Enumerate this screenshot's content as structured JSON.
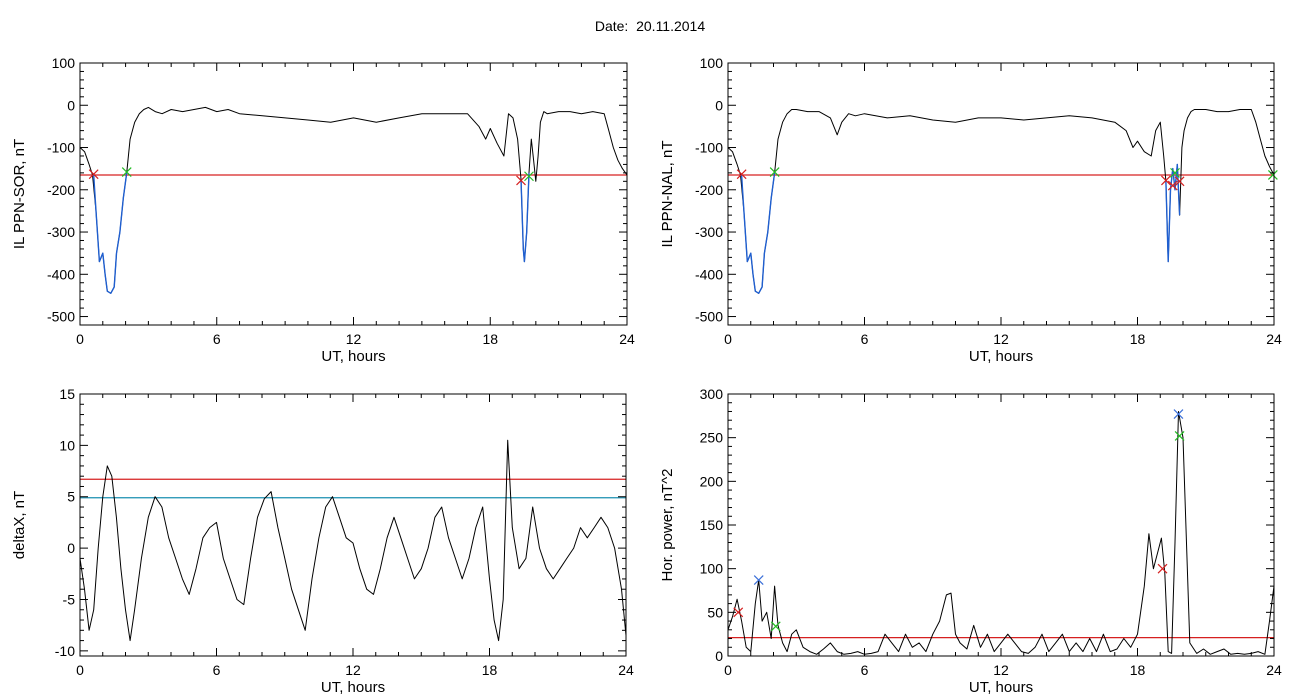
{
  "title": "Date:  20.11.2014",
  "colors": {
    "axis": "#000000",
    "signal": "#000000",
    "threshold_red": "#d62020",
    "threshold_teal": "#1a8fb0",
    "event_blue": "#1f5fd0",
    "marker_red": "#d62020",
    "marker_green": "#22bb22",
    "marker_blue": "#3a6fd8"
  },
  "chart_data": [
    {
      "id": "top-left",
      "type": "line",
      "xlabel": "UT, hours",
      "ylabel": "IL PPN-SOR, nT",
      "xlim": [
        0,
        24
      ],
      "ylim": [
        -520,
        100
      ],
      "xticks": [
        0,
        6,
        12,
        18,
        24
      ],
      "xtick_labels": [
        "0",
        "6",
        "12",
        "18",
        "24"
      ],
      "yticks": [
        100,
        0,
        -100,
        -200,
        -300,
        -400,
        -500
      ],
      "ytick_labels": [
        "100",
        "0",
        "-100",
        "-200",
        "-300",
        "-400",
        "-500"
      ],
      "hlines": [
        {
          "y": -165,
          "color": "threshold_red"
        }
      ],
      "series": [
        {
          "color": "signal",
          "x": [
            0,
            0.2,
            0.4,
            0.55,
            0.7,
            0.85,
            1.0,
            1.1,
            1.2,
            1.35,
            1.5,
            1.6,
            1.75,
            1.9,
            2.05,
            2.2,
            2.4,
            2.6,
            2.8,
            3.0,
            3.3,
            3.6,
            4.0,
            4.5,
            5.0,
            5.5,
            6.0,
            6.5,
            7.0,
            8.0,
            9.0,
            10.0,
            11.0,
            12.0,
            13.0,
            14.0,
            15.0,
            16.0,
            17.0,
            17.5,
            17.8,
            18.0,
            18.3,
            18.6,
            18.8,
            19.0,
            19.2,
            19.35,
            19.45,
            19.5,
            19.6,
            19.7,
            19.8,
            19.9,
            20.0,
            20.1,
            20.2,
            20.35,
            20.5,
            21.0,
            21.5,
            22.0,
            22.5,
            23.0,
            23.2,
            23.4,
            23.6,
            23.8,
            24.0
          ],
          "y": [
            -100,
            -110,
            -140,
            -165,
            -250,
            -370,
            -350,
            -400,
            -440,
            -445,
            -430,
            -350,
            -300,
            -220,
            -160,
            -80,
            -40,
            -20,
            -10,
            -5,
            -15,
            -20,
            -10,
            -15,
            -10,
            -5,
            -15,
            -10,
            -20,
            -25,
            -30,
            -35,
            -40,
            -30,
            -40,
            -30,
            -20,
            -20,
            -20,
            -50,
            -80,
            -55,
            -90,
            -120,
            -20,
            -30,
            -80,
            -175,
            -340,
            -370,
            -300,
            -160,
            -80,
            -130,
            -180,
            -120,
            -40,
            -15,
            -20,
            -15,
            -15,
            -20,
            -15,
            -20,
            -60,
            -100,
            -130,
            -150,
            -165
          ]
        },
        {
          "color": "event_blue",
          "x": [
            0.6,
            0.7,
            0.85,
            1.0,
            1.1,
            1.2,
            1.35,
            1.5,
            1.6,
            1.75,
            1.9,
            2.05
          ],
          "y": [
            -165,
            -250,
            -370,
            -350,
            -400,
            -440,
            -445,
            -430,
            -350,
            -300,
            -220,
            -160
          ]
        },
        {
          "color": "event_blue",
          "x": [
            19.35,
            19.45,
            19.5,
            19.6,
            19.7
          ],
          "y": [
            -175,
            -340,
            -370,
            -300,
            -160
          ]
        }
      ],
      "markers": [
        {
          "x": 0.6,
          "y": -163,
          "color": "marker_red"
        },
        {
          "x": 2.05,
          "y": -158,
          "color": "marker_green"
        },
        {
          "x": 19.35,
          "y": -178,
          "color": "marker_red"
        },
        {
          "x": 19.7,
          "y": -168,
          "color": "marker_green"
        }
      ]
    },
    {
      "id": "top-right",
      "type": "line",
      "xlabel": "UT, hours",
      "ylabel": "IL PPN-NAL, nT",
      "xlim": [
        0,
        24
      ],
      "ylim": [
        -520,
        100
      ],
      "xticks": [
        0,
        6,
        12,
        18,
        24
      ],
      "xtick_labels": [
        "0",
        "6",
        "12",
        "18",
        "24"
      ],
      "yticks": [
        100,
        0,
        -100,
        -200,
        -300,
        -400,
        -500
      ],
      "ytick_labels": [
        "100",
        "0",
        "-100",
        "-200",
        "-300",
        "-400",
        "-500"
      ],
      "hlines": [
        {
          "y": -165,
          "color": "threshold_red"
        }
      ],
      "series": [
        {
          "color": "signal",
          "x": [
            0,
            0.2,
            0.4,
            0.55,
            0.7,
            0.85,
            1.0,
            1.1,
            1.2,
            1.35,
            1.5,
            1.6,
            1.75,
            1.9,
            2.05,
            2.2,
            2.4,
            2.6,
            2.8,
            3.0,
            3.5,
            4.0,
            4.5,
            4.8,
            5.0,
            5.3,
            5.6,
            6.0,
            7.0,
            8.0,
            9.0,
            10.0,
            11.0,
            12.0,
            13.0,
            14.0,
            15.0,
            16.0,
            17.0,
            17.5,
            17.8,
            18.0,
            18.3,
            18.6,
            18.8,
            19.0,
            19.15,
            19.25,
            19.35,
            19.45,
            19.55,
            19.65,
            19.75,
            19.85,
            19.95,
            20.05,
            20.2,
            20.35,
            20.5,
            21.0,
            21.5,
            22.0,
            22.5,
            23.0,
            23.2,
            23.4,
            23.6,
            23.8,
            24.0
          ],
          "y": [
            -100,
            -110,
            -140,
            -165,
            -250,
            -370,
            -350,
            -400,
            -440,
            -445,
            -430,
            -350,
            -300,
            -220,
            -160,
            -80,
            -40,
            -20,
            -10,
            -10,
            -15,
            -15,
            -30,
            -70,
            -40,
            -20,
            -25,
            -20,
            -30,
            -25,
            -35,
            -40,
            -30,
            -30,
            -35,
            -30,
            -25,
            -30,
            -40,
            -60,
            -100,
            -85,
            -110,
            -120,
            -60,
            -40,
            -120,
            -180,
            -370,
            -200,
            -150,
            -200,
            -140,
            -260,
            -100,
            -60,
            -30,
            -15,
            -10,
            -10,
            -15,
            -15,
            -10,
            -10,
            -40,
            -80,
            -120,
            -145,
            -165
          ]
        },
        {
          "color": "event_blue",
          "x": [
            0.6,
            0.7,
            0.85,
            1.0,
            1.1,
            1.2,
            1.35,
            1.5,
            1.6,
            1.75,
            1.9,
            2.05
          ],
          "y": [
            -165,
            -250,
            -370,
            -350,
            -400,
            -440,
            -445,
            -430,
            -350,
            -300,
            -220,
            -160
          ]
        },
        {
          "color": "event_blue",
          "x": [
            19.25,
            19.35,
            19.45,
            19.55,
            19.65,
            19.75,
            19.85
          ],
          "y": [
            -180,
            -370,
            -200,
            -150,
            -200,
            -140,
            -260
          ]
        }
      ],
      "markers": [
        {
          "x": 0.6,
          "y": -163,
          "color": "marker_red"
        },
        {
          "x": 2.05,
          "y": -158,
          "color": "marker_green"
        },
        {
          "x": 19.25,
          "y": -178,
          "color": "marker_red"
        },
        {
          "x": 19.55,
          "y": -190,
          "color": "marker_red"
        },
        {
          "x": 19.85,
          "y": -180,
          "color": "marker_red"
        },
        {
          "x": 19.65,
          "y": -160,
          "color": "marker_green"
        },
        {
          "x": 23.95,
          "y": -165,
          "color": "marker_green"
        }
      ]
    },
    {
      "id": "bottom-left",
      "type": "line",
      "xlabel": "UT, hours",
      "ylabel": "deltaX, nT",
      "xlim": [
        0,
        24
      ],
      "ylim": [
        -10.5,
        15
      ],
      "xticks": [
        0,
        6,
        12,
        18,
        24
      ],
      "xtick_labels": [
        "0",
        "6",
        "12",
        "18",
        "24"
      ],
      "yticks": [
        15,
        10,
        5,
        0,
        -5,
        -10
      ],
      "ytick_labels": [
        "15",
        "10",
        "5",
        "0",
        "-5",
        "-10"
      ],
      "hlines": [
        {
          "y": 6.7,
          "color": "threshold_red"
        },
        {
          "y": 4.9,
          "color": "threshold_teal"
        }
      ],
      "series": [
        {
          "color": "signal",
          "x": [
            0,
            0.2,
            0.4,
            0.6,
            0.8,
            1.0,
            1.2,
            1.4,
            1.6,
            1.8,
            2.0,
            2.2,
            2.4,
            2.7,
            3.0,
            3.3,
            3.6,
            3.9,
            4.2,
            4.5,
            4.8,
            5.1,
            5.4,
            5.7,
            6.0,
            6.3,
            6.6,
            6.9,
            7.2,
            7.5,
            7.8,
            8.1,
            8.4,
            8.7,
            9.0,
            9.3,
            9.6,
            9.9,
            10.2,
            10.5,
            10.8,
            11.1,
            11.4,
            11.7,
            12.0,
            12.3,
            12.6,
            12.9,
            13.2,
            13.5,
            13.8,
            14.1,
            14.4,
            14.7,
            15.0,
            15.3,
            15.6,
            15.9,
            16.2,
            16.5,
            16.8,
            17.1,
            17.4,
            17.7,
            18.0,
            18.2,
            18.4,
            18.6,
            18.8,
            19.0,
            19.3,
            19.6,
            19.9,
            20.2,
            20.5,
            20.8,
            21.1,
            21.4,
            21.7,
            22.0,
            22.3,
            22.6,
            22.9,
            23.2,
            23.5,
            23.8,
            24.0
          ],
          "y": [
            -1,
            -4,
            -8,
            -6,
            0,
            5,
            8,
            7,
            3,
            -2,
            -6,
            -9,
            -6,
            -1,
            3,
            5,
            4,
            1,
            -1,
            -3,
            -4.5,
            -2,
            1,
            2,
            2.5,
            -1,
            -3,
            -5,
            -5.5,
            -1,
            3,
            4.8,
            5.5,
            2,
            -1,
            -4,
            -6,
            -8,
            -3,
            1,
            4,
            5,
            3,
            1,
            0.5,
            -2,
            -4,
            -4.5,
            -2,
            1,
            3,
            1,
            -1,
            -3,
            -2,
            0,
            3,
            4,
            1,
            -1,
            -3,
            -1,
            2,
            4,
            -3,
            -7,
            -9,
            -5,
            10.5,
            2,
            -2,
            -1,
            4,
            0,
            -2,
            -3,
            -2,
            -1,
            0,
            2,
            1,
            2,
            3,
            2,
            0,
            -4,
            -8.5
          ]
        }
      ],
      "markers": []
    },
    {
      "id": "bottom-right",
      "type": "line",
      "xlabel": "UT, hours",
      "ylabel": "Hor. power, nT^2",
      "xlim": [
        0,
        24
      ],
      "ylim": [
        0,
        300
      ],
      "xticks": [
        0,
        6,
        12,
        18,
        24
      ],
      "xtick_labels": [
        "0",
        "6",
        "12",
        "18",
        "24"
      ],
      "yticks": [
        300,
        250,
        200,
        150,
        100,
        50,
        0
      ],
      "ytick_labels": [
        "300",
        "250",
        "200",
        "150",
        "100",
        "50",
        "0"
      ],
      "hlines": [
        {
          "y": 21,
          "color": "threshold_red"
        }
      ],
      "series": [
        {
          "color": "signal",
          "x": [
            0,
            0.2,
            0.4,
            0.6,
            0.8,
            1.0,
            1.2,
            1.35,
            1.5,
            1.7,
            1.9,
            2.05,
            2.2,
            2.4,
            2.6,
            2.8,
            3.0,
            3.3,
            3.6,
            3.9,
            4.2,
            4.5,
            4.8,
            5.1,
            5.4,
            5.7,
            6.0,
            6.3,
            6.6,
            6.9,
            7.2,
            7.5,
            7.8,
            8.1,
            8.4,
            8.7,
            9.0,
            9.3,
            9.6,
            9.8,
            10.0,
            10.2,
            10.5,
            10.8,
            11.1,
            11.4,
            11.7,
            12.0,
            12.3,
            12.6,
            12.9,
            13.2,
            13.5,
            13.8,
            14.1,
            14.4,
            14.7,
            15.0,
            15.3,
            15.6,
            15.9,
            16.2,
            16.5,
            16.8,
            17.1,
            17.4,
            17.7,
            18.0,
            18.3,
            18.5,
            18.7,
            18.9,
            19.05,
            19.2,
            19.35,
            19.5,
            19.65,
            19.8,
            20.0,
            20.3,
            20.6,
            20.9,
            21.2,
            21.5,
            21.8,
            22.1,
            22.4,
            22.7,
            23.0,
            23.3,
            23.6,
            23.8,
            24.0
          ],
          "y": [
            30,
            45,
            65,
            40,
            10,
            5,
            60,
            87,
            40,
            50,
            20,
            80,
            35,
            15,
            5,
            25,
            30,
            10,
            5,
            2,
            8,
            15,
            5,
            2,
            3,
            5,
            2,
            3,
            5,
            25,
            15,
            5,
            25,
            10,
            15,
            5,
            25,
            40,
            70,
            72,
            25,
            15,
            8,
            35,
            10,
            25,
            5,
            15,
            25,
            15,
            5,
            3,
            10,
            25,
            5,
            15,
            25,
            5,
            15,
            5,
            20,
            5,
            25,
            5,
            8,
            20,
            10,
            25,
            80,
            140,
            100,
            120,
            135,
            95,
            5,
            3,
            130,
            280,
            250,
            15,
            3,
            8,
            2,
            5,
            8,
            2,
            3,
            2,
            3,
            5,
            2,
            40,
            80
          ]
        }
      ],
      "markers": [
        {
          "x": 0.45,
          "y": 50,
          "color": "marker_red"
        },
        {
          "x": 1.35,
          "y": 87,
          "color": "marker_blue"
        },
        {
          "x": 2.1,
          "y": 34,
          "color": "marker_green"
        },
        {
          "x": 19.1,
          "y": 100,
          "color": "marker_red"
        },
        {
          "x": 19.8,
          "y": 277,
          "color": "marker_blue"
        },
        {
          "x": 19.85,
          "y": 252,
          "color": "marker_green"
        }
      ]
    }
  ]
}
